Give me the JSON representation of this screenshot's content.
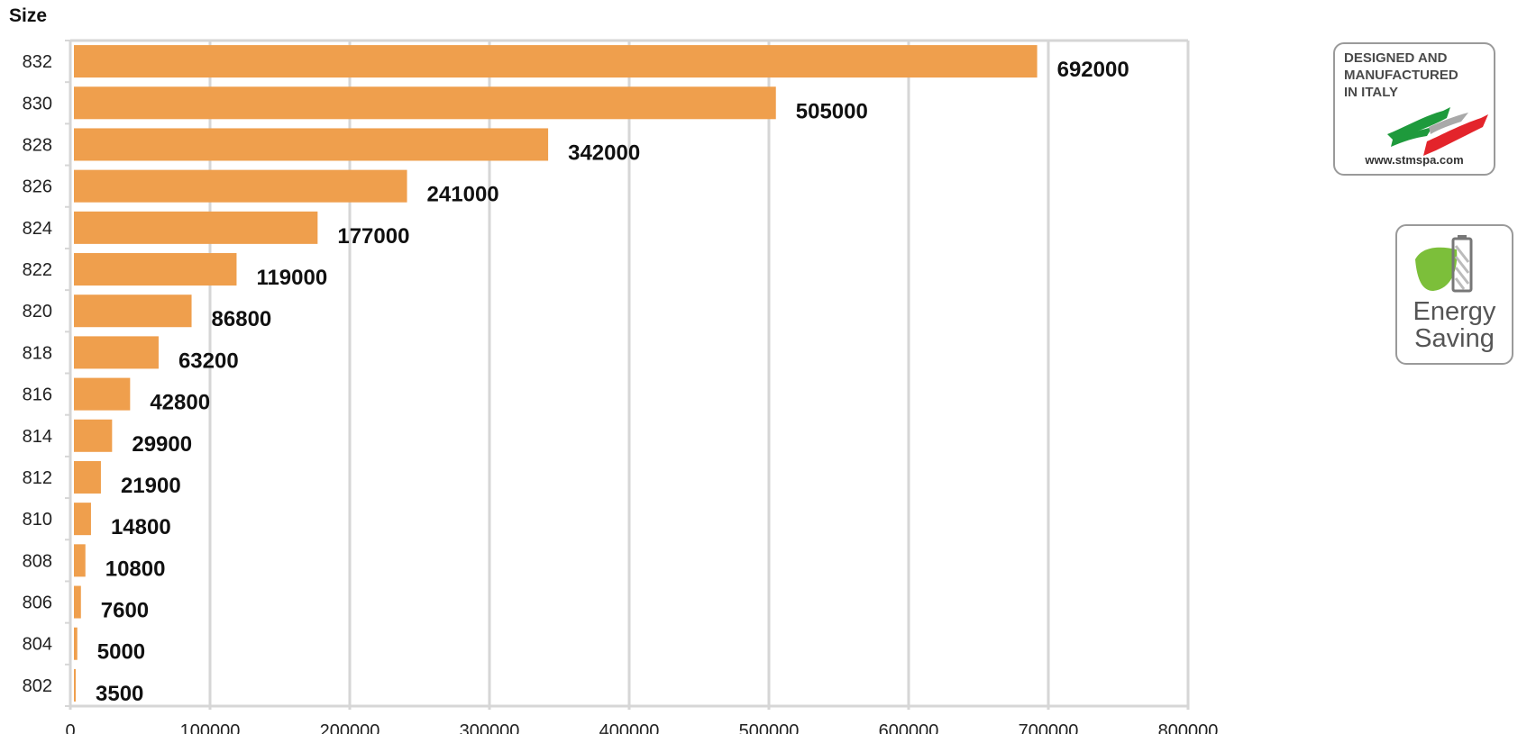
{
  "chart_data": {
    "type": "bar",
    "orientation": "horizontal",
    "ylabel": "Size",
    "xlabel": "",
    "categories": [
      "832",
      "830",
      "828",
      "826",
      "824",
      "822",
      "820",
      "818",
      "816",
      "814",
      "812",
      "810",
      "808",
      "806",
      "804",
      "802"
    ],
    "values": [
      692000,
      505000,
      342000,
      241000,
      177000,
      119000,
      86800,
      63200,
      42800,
      29900,
      21900,
      14800,
      10800,
      7600,
      5000,
      3500
    ],
    "xlim": [
      0,
      800000
    ],
    "xticks": [
      0,
      100000,
      200000,
      300000,
      400000,
      500000,
      600000,
      700000,
      800000
    ],
    "bar_color": "#EF9F4D",
    "grid": true,
    "data_labels": true
  },
  "badges": {
    "italy": {
      "text": "DESIGNED AND\nMANUFACTURED\nIN ITALY",
      "url": "www.stmspa.com",
      "colors": {
        "green": "#1E9A3C",
        "red": "#E3242B",
        "gray": "#A9A9A9"
      }
    },
    "energy": {
      "line1": "Energy",
      "line2": "Saving",
      "icons": [
        "leaf-icon",
        "battery-icon"
      ],
      "colors": {
        "leaf": "#7CBF3A",
        "text": "#555555"
      }
    }
  }
}
